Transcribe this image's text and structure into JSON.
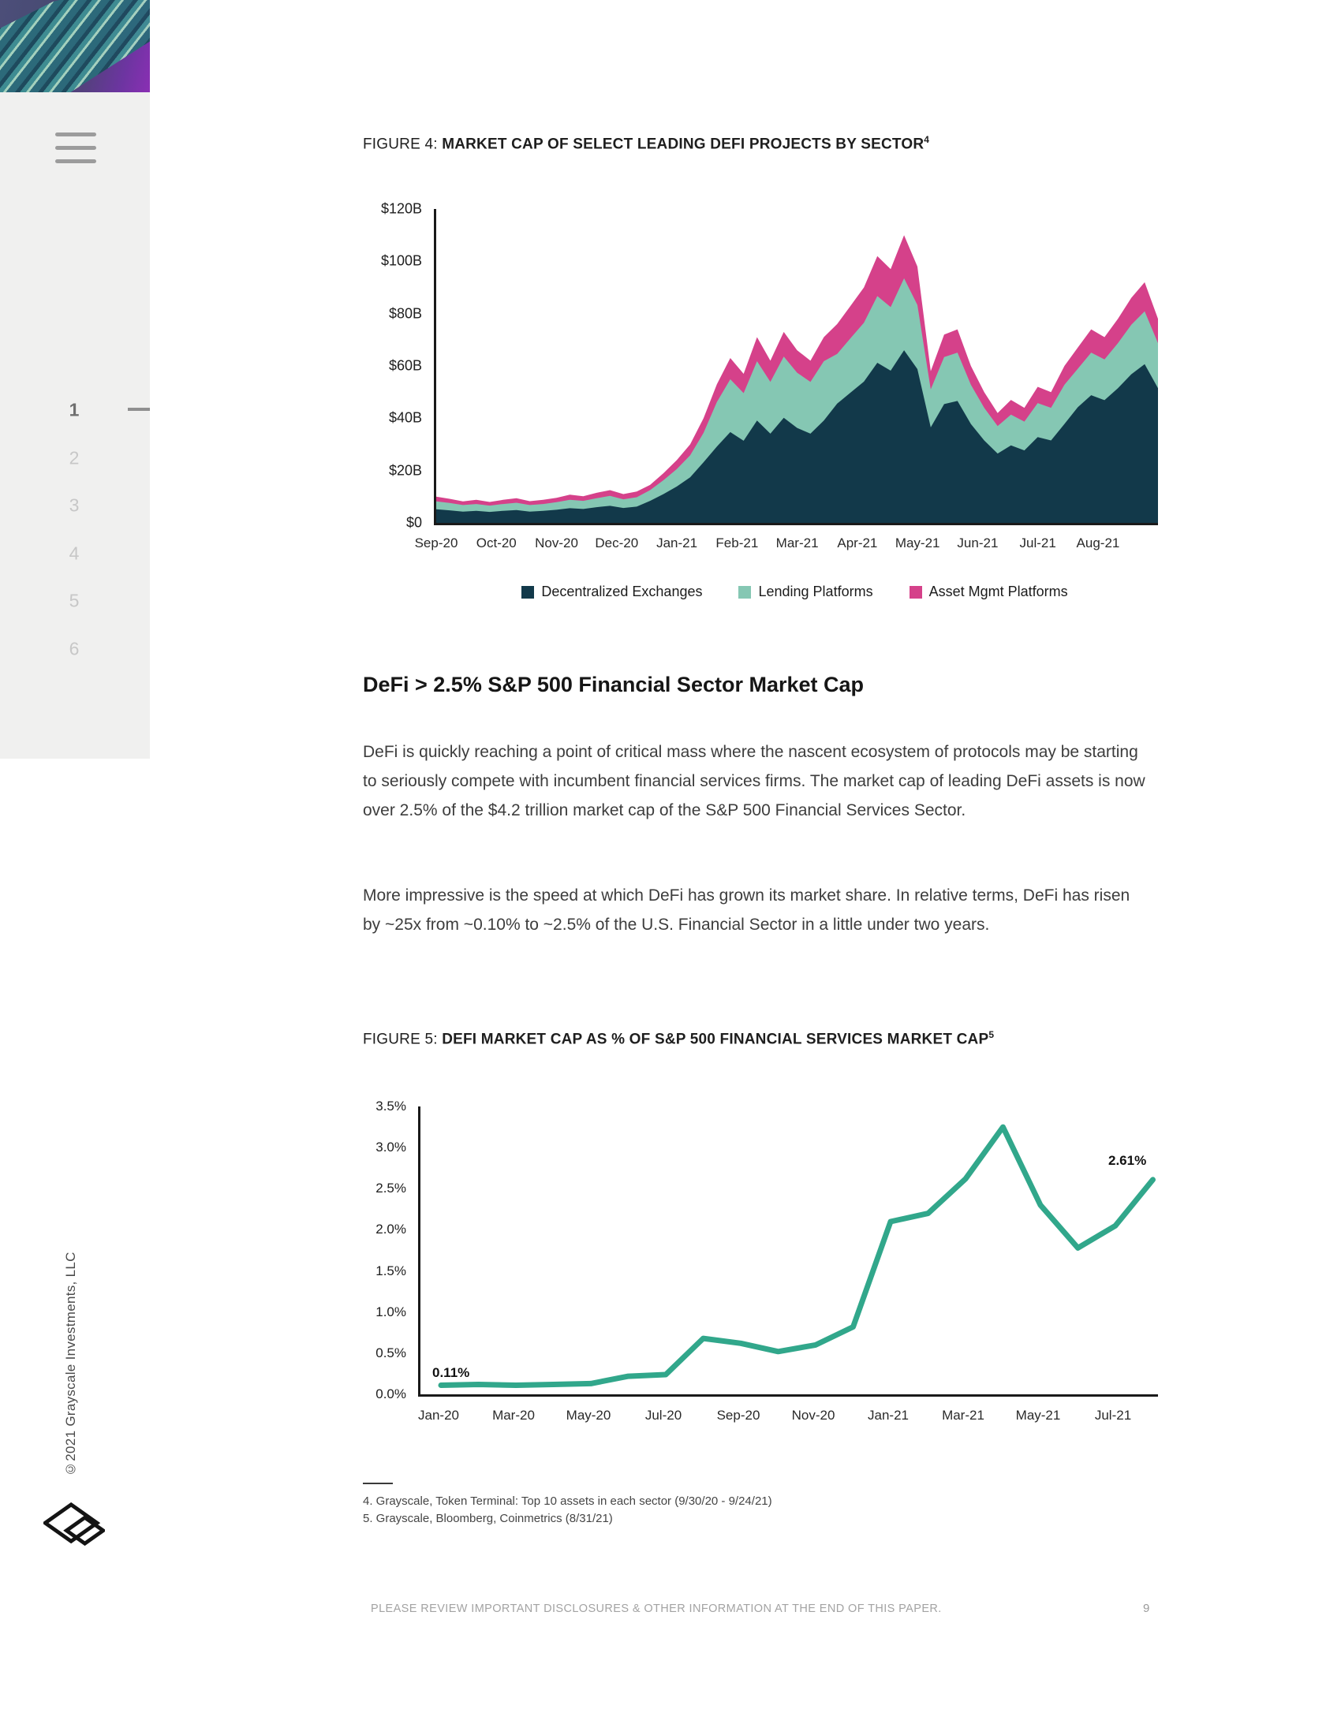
{
  "sidebar": {
    "nav_numbers": [
      "1",
      "2",
      "3",
      "4",
      "5",
      "6"
    ],
    "active_index": 0,
    "copyright": "©2021 Grayscale Investments, LLC"
  },
  "figure4": {
    "label": "FIGURE 4: ",
    "title": "MARKET CAP OF SELECT LEADING DEFI PROJECTS BY SECTOR",
    "footnote_ref": "4"
  },
  "section": {
    "heading": "DeFi > 2.5% S&P 500 Financial Sector Market Cap",
    "para1": "DeFi is quickly reaching a point of critical mass where the nascent ecosystem of protocols may be starting to seriously compete with incumbent financial services firms. The market cap of leading DeFi assets is now over 2.5% of the $4.2 trillion market cap of the S&P 500 Financial Services Sector.",
    "para2": "More impressive is the speed at which DeFi has grown its market share. In relative terms, DeFi has risen by ~25x from ~0.10% to ~2.5% of the U.S. Financial Sector in a little under two years."
  },
  "figure5": {
    "label": "FIGURE 5: ",
    "title": "DEFI MARKET CAP AS % OF S&P 500 FINANCIAL SERVICES MARKET CAP",
    "footnote_ref": "5"
  },
  "footnotes": [
    "4. Grayscale, Token Terminal: Top 10 assets in each sector (9/30/20 - 9/24/21)",
    "5. Grayscale, Bloomberg, Coinmetrics (8/31/21)"
  ],
  "footer": {
    "disclosure": "PLEASE REVIEW IMPORTANT DISCLOSURES & OTHER INFORMATION AT THE END OF THIS PAPER.",
    "page_number": "9"
  },
  "chart_data": [
    {
      "type": "area",
      "stacked": true,
      "title": "Market Cap of Select Leading DeFi Projects by Sector",
      "unit": "billions USD",
      "sampling": "weekly, Sep-2020 through late Sep-2021",
      "ylim": [
        0,
        120
      ],
      "grid": false,
      "legend_position": "bottom",
      "y_tick_labels": [
        "$120B",
        "$100B",
        "$80B",
        "$60B",
        "$40B",
        "$20B",
        "$0"
      ],
      "x_tick_labels": [
        "Sep-20",
        "Oct-20",
        "Nov-20",
        "Dec-20",
        "Jan-21",
        "Feb-21",
        "Mar-21",
        "Apr-21",
        "May-21",
        "Jun-21",
        "Jul-21",
        "Aug-21"
      ],
      "series": [
        {
          "name": "Decentralized Exchanges",
          "color": "#12394A",
          "values": [
            5.2,
            4.8,
            4.3,
            4.6,
            4.2,
            4.6,
            4.9,
            4.3,
            4.6,
            5.0,
            5.6,
            5.3,
            6.0,
            6.5,
            5.7,
            6.2,
            8.4,
            11.0,
            13.9,
            17.4,
            23.2,
            29.2,
            34.7,
            31.4,
            39.1,
            34.1,
            40.2,
            36.3,
            34.1,
            39.1,
            45.6,
            49.8,
            54.0,
            61.2,
            58.2,
            66.0,
            58.8,
            36.5,
            45.4,
            46.6,
            37.8,
            31.5,
            26.5,
            29.6,
            27.7,
            32.8,
            31.5,
            37.8,
            44.2,
            48.8,
            46.9,
            51.5,
            56.8,
            60.7,
            51.5
          ]
        },
        {
          "name": "Lending Platforms",
          "color": "#85C7B3",
          "values": [
            3.0,
            2.8,
            2.5,
            2.6,
            2.4,
            2.6,
            2.8,
            2.5,
            2.6,
            2.9,
            3.2,
            3.1,
            3.4,
            3.8,
            3.3,
            3.6,
            4.1,
            5.3,
            6.7,
            8.4,
            11.2,
            17.0,
            20.2,
            18.2,
            22.7,
            19.8,
            23.4,
            21.1,
            19.8,
            22.7,
            19.0,
            20.8,
            22.5,
            25.5,
            24.3,
            27.5,
            24.5,
            14.5,
            18.0,
            18.5,
            15.0,
            12.5,
            10.5,
            11.8,
            11.0,
            13.0,
            12.5,
            15.0,
            14.7,
            16.3,
            15.6,
            17.2,
            18.9,
            20.2,
            17.2
          ]
        },
        {
          "name": "Asset Mgmt Platforms",
          "color": "#D5418A",
          "values": [
            1.8,
            1.6,
            1.4,
            1.6,
            1.4,
            1.6,
            1.7,
            1.5,
            1.6,
            1.7,
            2.0,
            1.8,
            2.1,
            2.2,
            2.0,
            2.2,
            2.0,
            2.7,
            3.4,
            4.2,
            5.6,
            6.8,
            8.1,
            7.4,
            9.2,
            8.1,
            9.4,
            8.6,
            8.1,
            9.2,
            11.4,
            12.4,
            13.5,
            15.3,
            14.5,
            16.5,
            14.7,
            7.0,
            8.6,
            8.9,
            7.2,
            6.0,
            5.0,
            5.6,
            5.3,
            6.2,
            6.0,
            7.2,
            8.1,
            8.9,
            8.5,
            9.3,
            10.3,
            11.1,
            9.3
          ]
        }
      ]
    },
    {
      "type": "line",
      "title": "DeFi Market Cap as % of S&P 500 Financial Services Market Cap",
      "unit": "percent",
      "ylim": [
        0,
        3.5
      ],
      "grid": false,
      "line_color": "#31A78B",
      "y_tick_labels": [
        "3.5%",
        "3.0%",
        "2.5%",
        "2.0%",
        "1.5%",
        "1.0%",
        "0.5%",
        "0.0%"
      ],
      "x_tick_labels": [
        "Jan-20",
        "Mar-20",
        "May-20",
        "Jul-20",
        "Sep-20",
        "Nov-20",
        "Jan-21",
        "Mar-21",
        "May-21",
        "Jul-21"
      ],
      "x": [
        "Jan-20",
        "Feb-20",
        "Mar-20",
        "Apr-20",
        "May-20",
        "Jun-20",
        "Jul-20",
        "Aug-20",
        "Sep-20",
        "Oct-20",
        "Nov-20",
        "Dec-20",
        "Jan-21",
        "Feb-21",
        "Mar-21",
        "Apr-21",
        "May-21",
        "Jun-21",
        "Jul-21",
        "Aug-21"
      ],
      "values": [
        0.11,
        0.12,
        0.11,
        0.12,
        0.13,
        0.22,
        0.24,
        0.68,
        0.62,
        0.52,
        0.6,
        0.82,
        2.1,
        2.2,
        2.62,
        3.25,
        2.3,
        1.78,
        2.05,
        2.61
      ],
      "annotations": [
        {
          "text": "0.11%",
          "point": "first"
        },
        {
          "text": "2.61%",
          "point": "last"
        }
      ]
    }
  ]
}
